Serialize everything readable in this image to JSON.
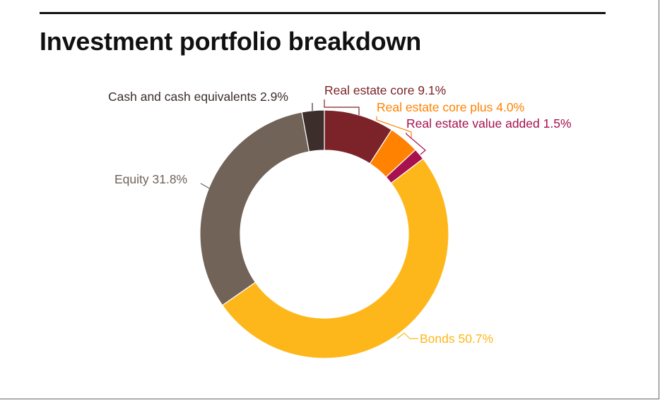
{
  "chart_data": {
    "type": "donut",
    "title": "Investment portfolio breakdown",
    "unit": "%",
    "slices": [
      {
        "name": "Real estate core",
        "value": 9.1,
        "display": "9.1%",
        "color": "#7b2328",
        "label_color": "#7b2328"
      },
      {
        "name": "Real estate core plus",
        "value": 4.0,
        "display": "4.0%",
        "color": "#ff8200",
        "label_color": "#ff8200"
      },
      {
        "name": "Real estate value added",
        "value": 1.5,
        "display": "1.5%",
        "color": "#a6114e",
        "label_color": "#a6114e"
      },
      {
        "name": "Bonds",
        "value": 50.7,
        "display": "50.7%",
        "color": "#fdb71a",
        "label_color": "#fdb71a"
      },
      {
        "name": "Equity",
        "value": 31.8,
        "display": "31.8%",
        "color": "#716358",
        "label_color": "#716358"
      },
      {
        "name": "Cash and cash equivalents",
        "value": 2.9,
        "display": "2.9%",
        "color": "#3b2e2b",
        "label_color": "#3b2e2b"
      }
    ]
  }
}
